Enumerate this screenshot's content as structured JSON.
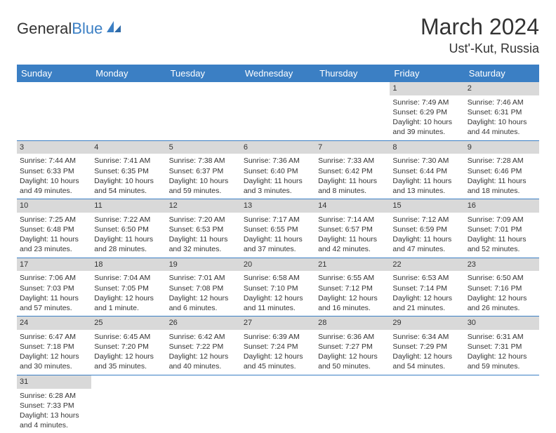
{
  "logo": {
    "text1": "General",
    "text2": "Blue"
  },
  "title": "March 2024",
  "location": "Ust'-Kut, Russia",
  "colors": {
    "header_bg": "#3b7fc4",
    "header_text": "#ffffff",
    "daynum_bg": "#d9d9d9",
    "row_border": "#3b7fc4",
    "body_text": "#333333",
    "page_bg": "#ffffff"
  },
  "fonts": {
    "title_size": 32,
    "location_size": 18,
    "header_cell_size": 13,
    "daynum_size": 11,
    "cell_size": 10.5
  },
  "weekdays": [
    "Sunday",
    "Monday",
    "Tuesday",
    "Wednesday",
    "Thursday",
    "Friday",
    "Saturday"
  ],
  "weeks": [
    [
      null,
      null,
      null,
      null,
      null,
      {
        "d": "1",
        "sr": "7:49 AM",
        "ss": "6:29 PM",
        "dl": "10 hours and 39 minutes."
      },
      {
        "d": "2",
        "sr": "7:46 AM",
        "ss": "6:31 PM",
        "dl": "10 hours and 44 minutes."
      }
    ],
    [
      {
        "d": "3",
        "sr": "7:44 AM",
        "ss": "6:33 PM",
        "dl": "10 hours and 49 minutes."
      },
      {
        "d": "4",
        "sr": "7:41 AM",
        "ss": "6:35 PM",
        "dl": "10 hours and 54 minutes."
      },
      {
        "d": "5",
        "sr": "7:38 AM",
        "ss": "6:37 PM",
        "dl": "10 hours and 59 minutes."
      },
      {
        "d": "6",
        "sr": "7:36 AM",
        "ss": "6:40 PM",
        "dl": "11 hours and 3 minutes."
      },
      {
        "d": "7",
        "sr": "7:33 AM",
        "ss": "6:42 PM",
        "dl": "11 hours and 8 minutes."
      },
      {
        "d": "8",
        "sr": "7:30 AM",
        "ss": "6:44 PM",
        "dl": "11 hours and 13 minutes."
      },
      {
        "d": "9",
        "sr": "7:28 AM",
        "ss": "6:46 PM",
        "dl": "11 hours and 18 minutes."
      }
    ],
    [
      {
        "d": "10",
        "sr": "7:25 AM",
        "ss": "6:48 PM",
        "dl": "11 hours and 23 minutes."
      },
      {
        "d": "11",
        "sr": "7:22 AM",
        "ss": "6:50 PM",
        "dl": "11 hours and 28 minutes."
      },
      {
        "d": "12",
        "sr": "7:20 AM",
        "ss": "6:53 PM",
        "dl": "11 hours and 32 minutes."
      },
      {
        "d": "13",
        "sr": "7:17 AM",
        "ss": "6:55 PM",
        "dl": "11 hours and 37 minutes."
      },
      {
        "d": "14",
        "sr": "7:14 AM",
        "ss": "6:57 PM",
        "dl": "11 hours and 42 minutes."
      },
      {
        "d": "15",
        "sr": "7:12 AM",
        "ss": "6:59 PM",
        "dl": "11 hours and 47 minutes."
      },
      {
        "d": "16",
        "sr": "7:09 AM",
        "ss": "7:01 PM",
        "dl": "11 hours and 52 minutes."
      }
    ],
    [
      {
        "d": "17",
        "sr": "7:06 AM",
        "ss": "7:03 PM",
        "dl": "11 hours and 57 minutes."
      },
      {
        "d": "18",
        "sr": "7:04 AM",
        "ss": "7:05 PM",
        "dl": "12 hours and 1 minute."
      },
      {
        "d": "19",
        "sr": "7:01 AM",
        "ss": "7:08 PM",
        "dl": "12 hours and 6 minutes."
      },
      {
        "d": "20",
        "sr": "6:58 AM",
        "ss": "7:10 PM",
        "dl": "12 hours and 11 minutes."
      },
      {
        "d": "21",
        "sr": "6:55 AM",
        "ss": "7:12 PM",
        "dl": "12 hours and 16 minutes."
      },
      {
        "d": "22",
        "sr": "6:53 AM",
        "ss": "7:14 PM",
        "dl": "12 hours and 21 minutes."
      },
      {
        "d": "23",
        "sr": "6:50 AM",
        "ss": "7:16 PM",
        "dl": "12 hours and 26 minutes."
      }
    ],
    [
      {
        "d": "24",
        "sr": "6:47 AM",
        "ss": "7:18 PM",
        "dl": "12 hours and 30 minutes."
      },
      {
        "d": "25",
        "sr": "6:45 AM",
        "ss": "7:20 PM",
        "dl": "12 hours and 35 minutes."
      },
      {
        "d": "26",
        "sr": "6:42 AM",
        "ss": "7:22 PM",
        "dl": "12 hours and 40 minutes."
      },
      {
        "d": "27",
        "sr": "6:39 AM",
        "ss": "7:24 PM",
        "dl": "12 hours and 45 minutes."
      },
      {
        "d": "28",
        "sr": "6:36 AM",
        "ss": "7:27 PM",
        "dl": "12 hours and 50 minutes."
      },
      {
        "d": "29",
        "sr": "6:34 AM",
        "ss": "7:29 PM",
        "dl": "12 hours and 54 minutes."
      },
      {
        "d": "30",
        "sr": "6:31 AM",
        "ss": "7:31 PM",
        "dl": "12 hours and 59 minutes."
      }
    ],
    [
      {
        "d": "31",
        "sr": "6:28 AM",
        "ss": "7:33 PM",
        "dl": "13 hours and 4 minutes."
      },
      null,
      null,
      null,
      null,
      null,
      null
    ]
  ],
  "labels": {
    "sunrise": "Sunrise:",
    "sunset": "Sunset:",
    "daylight": "Daylight:"
  }
}
